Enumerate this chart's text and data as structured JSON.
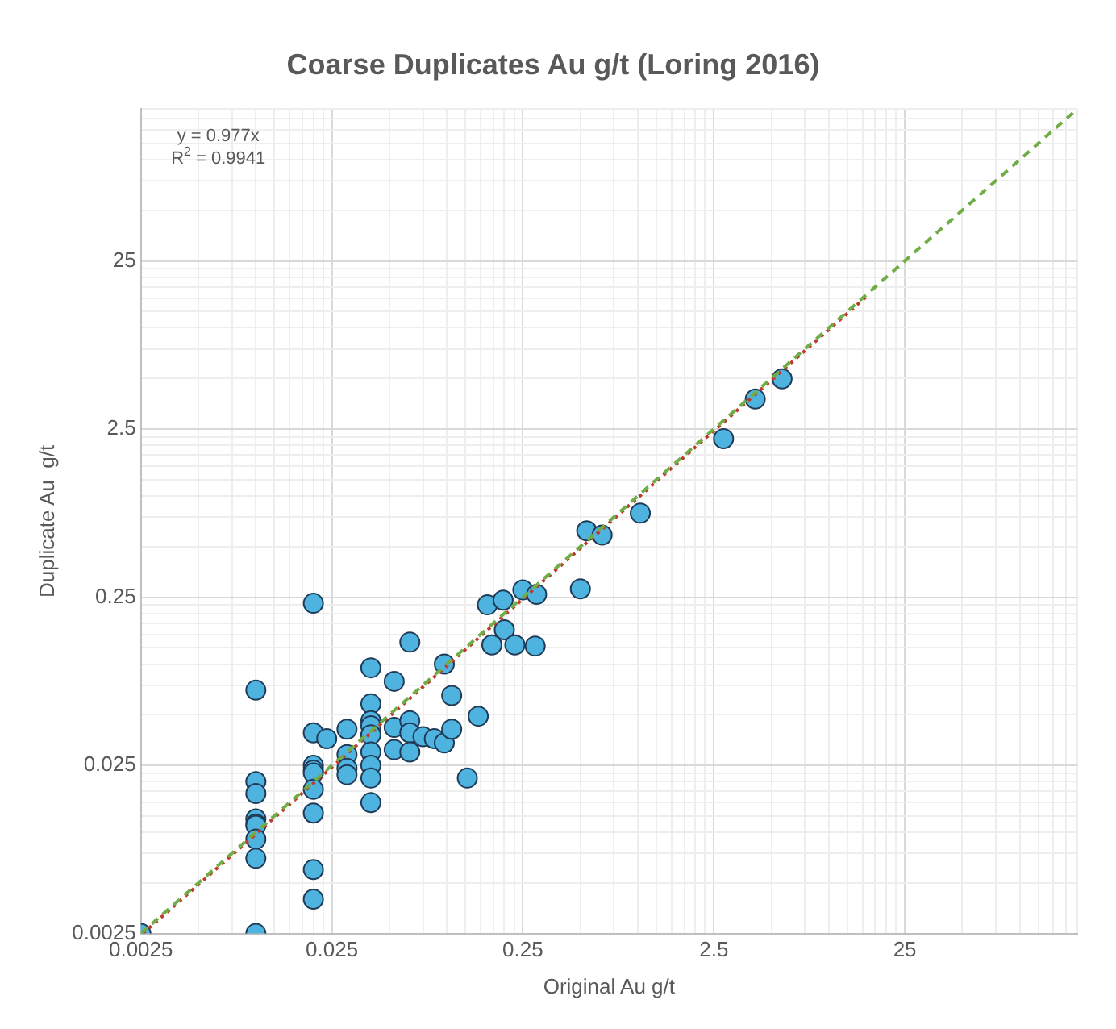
{
  "chart_data": {
    "type": "scatter",
    "title": "Coarse Duplicates Au g/t (Loring 2016)",
    "xlabel": "Original Au g/t",
    "ylabel": "Duplicate Au  g/t",
    "annotations": [
      "y = 0.977x",
      "R$^{2}$ = 0.9941"
    ],
    "log": "xy",
    "grid": true,
    "legend": false,
    "xlim": [
      0.0025,
      200
    ],
    "ylim": [
      0.0025,
      200
    ],
    "xticks": [
      0.0025,
      {
        "value": 0.005,
        "label": null
      },
      {
        "value": 0.0075,
        "label": null
      },
      {
        "value": 0.01,
        "label": null
      },
      {
        "value": 0.0125,
        "label": null
      },
      {
        "value": 0.015,
        "label": null
      },
      {
        "value": 0.0175,
        "label": null
      },
      {
        "value": 0.02,
        "label": null
      },
      {
        "value": 0.0225,
        "label": null
      },
      0.025,
      {
        "value": 0.05,
        "label": null
      },
      {
        "value": 0.075,
        "label": null
      },
      {
        "value": 0.1,
        "label": null
      },
      {
        "value": 0.125,
        "label": null
      },
      {
        "value": 0.15,
        "label": null
      },
      {
        "value": 0.175,
        "label": null
      },
      {
        "value": 0.2,
        "label": null
      },
      {
        "value": 0.225,
        "label": null
      },
      0.25,
      {
        "value": 0.5,
        "label": null
      },
      {
        "value": 0.75,
        "label": null
      },
      {
        "value": 1,
        "label": null
      },
      {
        "value": 1.25,
        "label": null
      },
      {
        "value": 1.5,
        "label": null
      },
      {
        "value": 1.75,
        "label": null
      },
      {
        "value": 2,
        "label": null
      },
      {
        "value": 2.25,
        "label": null
      },
      2.5,
      {
        "value": 5,
        "label": null
      },
      {
        "value": 7.5,
        "label": null
      },
      {
        "value": 10,
        "label": null
      },
      {
        "value": 12.5,
        "label": null
      },
      {
        "value": 15,
        "label": null
      },
      {
        "value": 17.5,
        "label": null
      },
      {
        "value": 20,
        "label": null
      },
      {
        "value": 22.5,
        "label": null
      },
      25,
      {
        "value": 50,
        "label": null
      },
      {
        "value": 75,
        "label": null
      },
      {
        "value": 100,
        "label": null
      },
      {
        "value": 125,
        "label": null
      },
      {
        "value": 150,
        "label": null
      },
      {
        "value": 175,
        "label": null
      },
      {
        "value": 200,
        "label": null
      }
    ],
    "yticks": [
      0.0025,
      {
        "value": 0.005,
        "label": null
      },
      {
        "value": 0.0075,
        "label": null
      },
      {
        "value": 0.01,
        "label": null
      },
      {
        "value": 0.0125,
        "label": null
      },
      {
        "value": 0.015,
        "label": null
      },
      {
        "value": 0.0175,
        "label": null
      },
      {
        "value": 0.02,
        "label": null
      },
      {
        "value": 0.0225,
        "label": null
      },
      0.025,
      {
        "value": 0.05,
        "label": null
      },
      {
        "value": 0.075,
        "label": null
      },
      {
        "value": 0.1,
        "label": null
      },
      {
        "value": 0.125,
        "label": null
      },
      {
        "value": 0.15,
        "label": null
      },
      {
        "value": 0.175,
        "label": null
      },
      {
        "value": 0.2,
        "label": null
      },
      {
        "value": 0.225,
        "label": null
      },
      0.25,
      {
        "value": 0.5,
        "label": null
      },
      {
        "value": 0.75,
        "label": null
      },
      {
        "value": 1,
        "label": null
      },
      {
        "value": 1.25,
        "label": null
      },
      {
        "value": 1.5,
        "label": null
      },
      {
        "value": 1.75,
        "label": null
      },
      {
        "value": 2,
        "label": null
      },
      {
        "value": 2.25,
        "label": null
      },
      2.5,
      {
        "value": 5,
        "label": null
      },
      {
        "value": 7.5,
        "label": null
      },
      {
        "value": 10,
        "label": null
      },
      {
        "value": 12.5,
        "label": null
      },
      {
        "value": 15,
        "label": null
      },
      {
        "value": 17.5,
        "label": null
      },
      {
        "value": 20,
        "label": null
      },
      {
        "value": 22.5,
        "label": null
      },
      25,
      {
        "value": 50,
        "label": null
      },
      {
        "value": 75,
        "label": null
      },
      {
        "value": 100,
        "label": null
      },
      {
        "value": 125,
        "label": null
      },
      {
        "value": 150,
        "label": null
      },
      {
        "value": 175,
        "label": null
      },
      {
        "value": 200,
        "label": null
      }
    ],
    "series": [
      {
        "type": "line",
        "color": "#70ad47",
        "line_style": "dashed",
        "marker": "none",
        "x": [
          0.0025,
          200
        ],
        "values": [
          0.0025,
          200
        ]
      },
      {
        "type": "line",
        "color": "#c0392b",
        "line_style": "dotted",
        "marker": "none",
        "x": [
          0.00256,
          16
        ],
        "values": [
          0.0025,
          15.6
        ]
      },
      {
        "type": "scatter",
        "color": "#4fb3e0",
        "marker": "circle",
        "x": [
          0.0025,
          0.01,
          0.01,
          0.01,
          0.01,
          0.01,
          0.01,
          0.01,
          0.01,
          0.01,
          0.02,
          0.02,
          0.02,
          0.02,
          0.02,
          0.02,
          0.02,
          0.02,
          0.02,
          0.0235,
          0.03,
          0.03,
          0.03,
          0.03,
          0.04,
          0.04,
          0.04,
          0.04,
          0.04,
          0.04,
          0.04,
          0.04,
          0.04,
          0.053,
          0.053,
          0.053,
          0.064,
          0.064,
          0.064,
          0.064,
          0.075,
          0.086,
          0.097,
          0.097,
          0.106,
          0.106,
          0.128,
          0.146,
          0.172,
          0.2,
          0.227,
          0.29,
          0.163,
          0.197,
          0.25,
          0.295,
          0.5,
          0.54,
          0.65,
          1.03,
          2.81,
          4.12,
          5.69
        ],
        "values": [
          0.0025,
          0.0025,
          0.07,
          0.02,
          0.017,
          0.012,
          0.0112,
          0.011,
          0.0091,
          0.007,
          0.23,
          0.039,
          0.025,
          0.0234,
          0.0225,
          0.018,
          0.013,
          0.006,
          0.004,
          0.036,
          0.041,
          0.029,
          0.024,
          0.022,
          0.095,
          0.058,
          0.046,
          0.043,
          0.038,
          0.03,
          0.025,
          0.021,
          0.015,
          0.079,
          0.042,
          0.031,
          0.135,
          0.046,
          0.039,
          0.03,
          0.037,
          0.036,
          0.034,
          0.1,
          0.065,
          0.041,
          0.021,
          0.049,
          0.13,
          0.16,
          0.13,
          0.128,
          0.225,
          0.24,
          0.276,
          0.26,
          0.28,
          0.62,
          0.585,
          0.79,
          2.19,
          3.77,
          4.97
        ]
      }
    ]
  }
}
